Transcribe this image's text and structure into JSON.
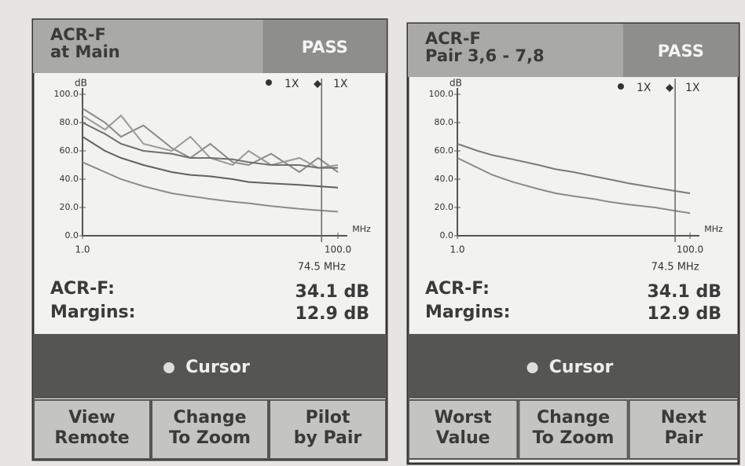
{
  "panels": [
    {
      "header": {
        "title": [
          "ACR-F",
          "at Main"
        ],
        "status": "PASS"
      },
      "chart": {
        "type": "line",
        "y_label": "dB",
        "x_unit": "MHz",
        "indicators": [
          "1X",
          "1X"
        ],
        "x_scale": "log",
        "xlim": [
          1,
          100
        ],
        "xticks": [
          {
            "value": 1,
            "label": "1.0"
          },
          {
            "value": 100,
            "label": "100.0"
          }
        ],
        "ylim": [
          0,
          100
        ],
        "yticks": [
          {
            "value": 0,
            "label": "0.0"
          },
          {
            "value": 20,
            "label": "20.0"
          },
          {
            "value": 40,
            "label": "40.0"
          },
          {
            "value": 60,
            "label": "60.0"
          },
          {
            "value": 80,
            "label": "80.0"
          },
          {
            "value": 100,
            "label": "100.0"
          }
        ],
        "cursor": {
          "value": 74.5,
          "label": "74.5 MHz"
        },
        "x": [
          1,
          1.5,
          2,
          3,
          5,
          7,
          10,
          15,
          20,
          30,
          50,
          70,
          100
        ],
        "series": [
          {
            "color": "#8a8a8a",
            "values": [
              90,
              80,
              70,
              78,
              62,
              55,
              65,
              52,
              50,
              58,
              45,
              55,
              45
            ]
          },
          {
            "color": "#9a9a9a",
            "values": [
              85,
              75,
              85,
              65,
              60,
              70,
              55,
              50,
              60,
              50,
              55,
              48,
              50
            ]
          },
          {
            "color": "#707070",
            "values": [
              80,
              72,
              65,
              60,
              58,
              55,
              55,
              54,
              52,
              50,
              50,
              48,
              48
            ]
          },
          {
            "color": "#606060",
            "values": [
              70,
              60,
              55,
              50,
              45,
              43,
              42,
              40,
              38,
              37,
              36,
              35,
              34
            ]
          },
          {
            "color": "#8c8c8c",
            "values": [
              52,
              45,
              40,
              35,
              30,
              28,
              26,
              24,
              23,
              21,
              19,
              18,
              17
            ]
          }
        ]
      },
      "readouts": [
        {
          "label": "ACR-F:",
          "value": "34.1 dB"
        },
        {
          "label": "Margins:",
          "value": "12.9 dB"
        }
      ],
      "cursor_bar": "Cursor",
      "buttons": [
        [
          "View",
          "Remote"
        ],
        [
          "Change",
          "To Zoom"
        ],
        [
          "Pilot",
          "by Pair"
        ]
      ]
    },
    {
      "header": {
        "title": [
          "ACR-F",
          "Pair 3,6 - 7,8"
        ],
        "status": "PASS"
      },
      "chart": {
        "type": "line",
        "y_label": "dB",
        "x_unit": "MHz",
        "indicators": [
          "1X",
          "1X"
        ],
        "x_scale": "log",
        "xlim": [
          1,
          100
        ],
        "xticks": [
          {
            "value": 1,
            "label": "1.0"
          },
          {
            "value": 100,
            "label": "100.0"
          }
        ],
        "ylim": [
          0,
          100
        ],
        "yticks": [
          {
            "value": 0,
            "label": "0.0"
          },
          {
            "value": 20,
            "label": "20.0"
          },
          {
            "value": 40,
            "label": "40.0"
          },
          {
            "value": 60,
            "label": "60.0"
          },
          {
            "value": 80,
            "label": "80.0"
          },
          {
            "value": 100,
            "label": "100.0"
          }
        ],
        "cursor": {
          "value": 74.5,
          "label": "74.5 MHz"
        },
        "x": [
          1,
          1.5,
          2,
          3,
          5,
          7,
          10,
          15,
          20,
          30,
          50,
          70,
          100
        ],
        "series": [
          {
            "color": "#7a7a7a",
            "values": [
              65,
              60,
              57,
              54,
              50,
              47,
              45,
              42,
              40,
              37,
              34,
              32,
              30
            ]
          },
          {
            "color": "#8a8a8a",
            "values": [
              55,
              48,
              43,
              38,
              33,
              30,
              28,
              26,
              24,
              22,
              20,
              18,
              16
            ]
          }
        ]
      },
      "readouts": [
        {
          "label": "ACR-F:",
          "value": "34.1 dB"
        },
        {
          "label": "Margins:",
          "value": "12.9 dB"
        }
      ],
      "cursor_bar": "Cursor",
      "buttons": [
        [
          "Worst",
          "Value"
        ],
        [
          "Change",
          "To Zoom"
        ],
        [
          "Next",
          "Pair"
        ]
      ]
    }
  ]
}
